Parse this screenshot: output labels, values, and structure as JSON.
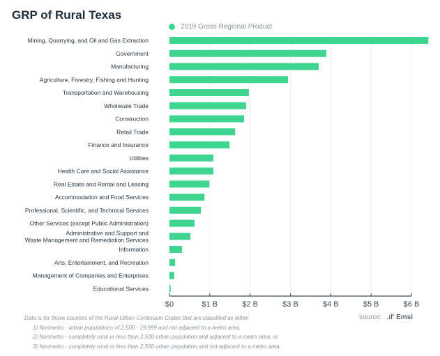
{
  "chart_data": {
    "type": "bar",
    "orientation": "horizontal",
    "title": "GRP of Rural Texas",
    "legend": [
      "2019 Gross Regional Product"
    ],
    "legend_position": "top",
    "color": "#3fd48f",
    "categories": [
      "Mining, Quarrying, and Oil and Gas Extraction",
      "Government",
      "Manufacturing",
      "Agriculture, Forestry, Fishing and Hunting",
      "Transportation and Warehousing",
      "Wholesale Trade",
      "Construction",
      "Retail Trade",
      "Finance and Insurance",
      "Utilities",
      "Health Care and Social Assistance",
      "Real Estate and Rental and Leasing",
      "Accommodation and Food Services",
      "Professional, Scientific, and Technical Services",
      "Other Services (except Public Administration)",
      "Administrative and Support and|Waste Management and Remediation Services",
      "Information",
      "Arts, Entertainment, and Recreation",
      "Management of Companies and Enterprises",
      "Educational Services"
    ],
    "values": [
      6.42,
      3.89,
      3.7,
      2.94,
      1.97,
      1.9,
      1.85,
      1.63,
      1.49,
      1.09,
      1.09,
      0.99,
      0.87,
      0.78,
      0.62,
      0.52,
      0.31,
      0.14,
      0.12,
      0.03
    ],
    "units": "billions USD",
    "xlim": [
      0,
      6
    ],
    "xticks": [
      0,
      1,
      2,
      3,
      4,
      5,
      6
    ],
    "xtick_labels": [
      "$0",
      "$1 B",
      "$2 B",
      "$3 B",
      "$4 B",
      "$5 B",
      "$6 B"
    ],
    "grid": true
  },
  "notes": [
    "Data is for those counties of the Rural-Urban Continuum Codes that are classified as either",
    "1) Nonmetro - urban populations of 2,500 - 19,999 and not adjacent to a metro area,",
    "2) Nonmetro - completely rural or less than 2,500 urban population and adjacent to a metro area, or",
    "3) Nonmetro - completely rural or less than 2,500 urban population and not adjacent to a metro area."
  ],
  "source": {
    "label": "source:",
    "brand": "Emsi"
  }
}
